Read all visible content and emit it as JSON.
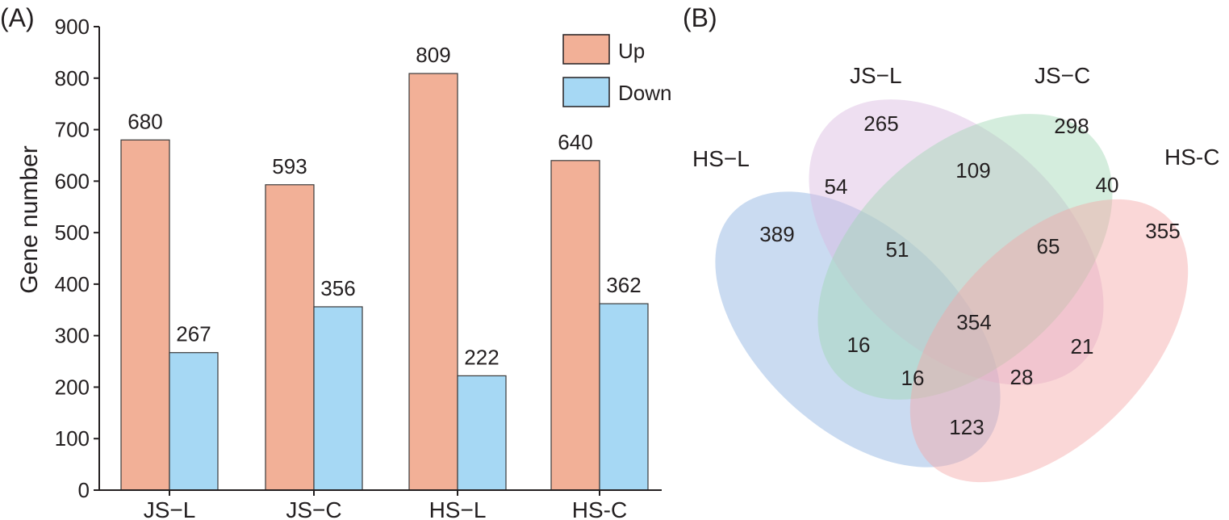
{
  "chart_data": [
    {
      "panel_label": "(A)",
      "type": "bar",
      "ylabel": "Gene number",
      "xlabel": "",
      "ylim": [
        0,
        900
      ],
      "yticks": [
        "0",
        "100",
        "200",
        "300",
        "400",
        "500",
        "600",
        "700",
        "800",
        "900"
      ],
      "categories": [
        "JS−L",
        "JS−C",
        "HS−L",
        "HS-C"
      ],
      "series": [
        {
          "name": "Up",
          "color": "#f2b097",
          "values": [
            680,
            593,
            809,
            640
          ]
        },
        {
          "name": "Down",
          "color": "#a6d8f4",
          "values": [
            267,
            356,
            222,
            362
          ]
        }
      ],
      "legend_position": "top-right"
    },
    {
      "panel_label": "(B)",
      "type": "venn",
      "sets": [
        {
          "name": "HS−L",
          "color": "#8ab0e0"
        },
        {
          "name": "JS−L",
          "color": "#d9b8e0"
        },
        {
          "name": "JS−C",
          "color": "#9fd6b4"
        },
        {
          "name": "HS-C",
          "color": "#f4a6a6"
        }
      ],
      "regions": [
        {
          "sets": [
            "JS−L"
          ],
          "value": 265
        },
        {
          "sets": [
            "JS−C"
          ],
          "value": 298
        },
        {
          "sets": [
            "JS−L",
            "JS−C"
          ],
          "value": 109
        },
        {
          "sets": [
            "HS−L",
            "JS−L"
          ],
          "value": 54
        },
        {
          "sets": [
            "JS−C",
            "HS-C"
          ],
          "value": 40
        },
        {
          "sets": [
            "HS−L"
          ],
          "value": 389
        },
        {
          "sets": [
            "HS-C"
          ],
          "value": 355
        },
        {
          "sets": [
            "HS−L",
            "JS−L",
            "JS−C"
          ],
          "value": 51
        },
        {
          "sets": [
            "JS−L",
            "JS−C",
            "HS-C"
          ],
          "value": 65
        },
        {
          "sets": [
            "HS−L",
            "JS−L",
            "JS−C",
            "HS-C"
          ],
          "value": 354
        },
        {
          "sets": [
            "HS−L",
            "JS−C"
          ],
          "value": 16
        },
        {
          "sets": [
            "JS−L",
            "HS-C"
          ],
          "value": 21
        },
        {
          "sets": [
            "HS−L",
            "JS−C",
            "HS-C"
          ],
          "value": 16
        },
        {
          "sets": [
            "HS−L",
            "JS−L",
            "HS-C"
          ],
          "value": 28
        },
        {
          "sets": [
            "HS−L",
            "HS-C"
          ],
          "value": 123
        }
      ]
    }
  ]
}
